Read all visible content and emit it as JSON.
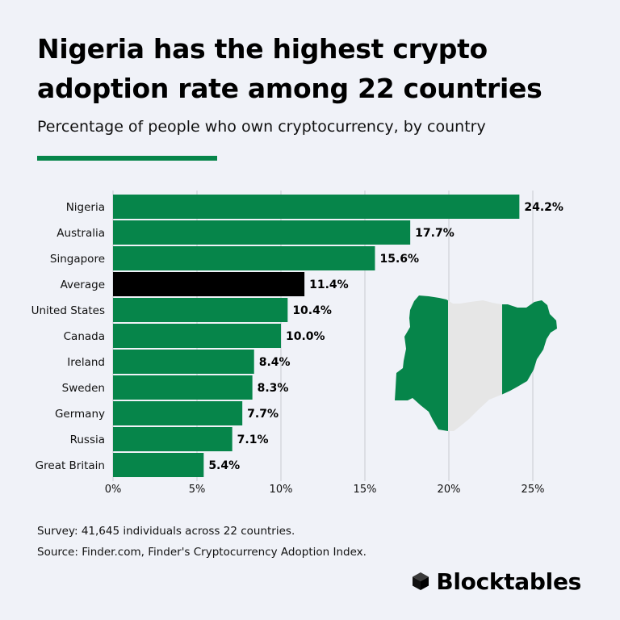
{
  "header": {
    "title": "Nigeria has the highest crypto adoption rate among 22 countries",
    "subtitle": "Percentage of people who own cryptocurrency, by country"
  },
  "footer": {
    "survey": "Survey: 41,645 individuals across 22 countries.",
    "source": "Source: Finder.com, Finder's Cryptocurrency Adoption Index.",
    "brand": "Blocktables"
  },
  "colors": {
    "bar": "#06854a",
    "highlight": "#000000",
    "grid": "#c9cbd1",
    "map_white": "#e6e6e6"
  },
  "icons": {
    "brand": "cube-icon",
    "map": "nigeria-flag-map"
  },
  "chart_data": {
    "type": "bar",
    "orientation": "horizontal",
    "categories": [
      "Nigeria",
      "Australia",
      "Singapore",
      "Average",
      "United States",
      "Canada",
      "Ireland",
      "Sweden",
      "Germany",
      "Russia",
      "Great Britain"
    ],
    "values": [
      24.2,
      17.7,
      15.6,
      11.4,
      10.4,
      10.0,
      8.4,
      8.3,
      7.7,
      7.1,
      5.4
    ],
    "value_labels": [
      "24.2%",
      "17.7%",
      "15.6%",
      "11.4%",
      "10.4%",
      "10.0%",
      "8.4%",
      "8.3%",
      "7.7%",
      "7.1%",
      "5.4%"
    ],
    "highlight_category": "Average",
    "xlim": [
      0,
      25
    ],
    "xticks": [
      0,
      5,
      10,
      15,
      20,
      25
    ],
    "xtick_labels": [
      "0%",
      "5%",
      "10%",
      "15%",
      "20%",
      "25%"
    ],
    "grid": true
  }
}
